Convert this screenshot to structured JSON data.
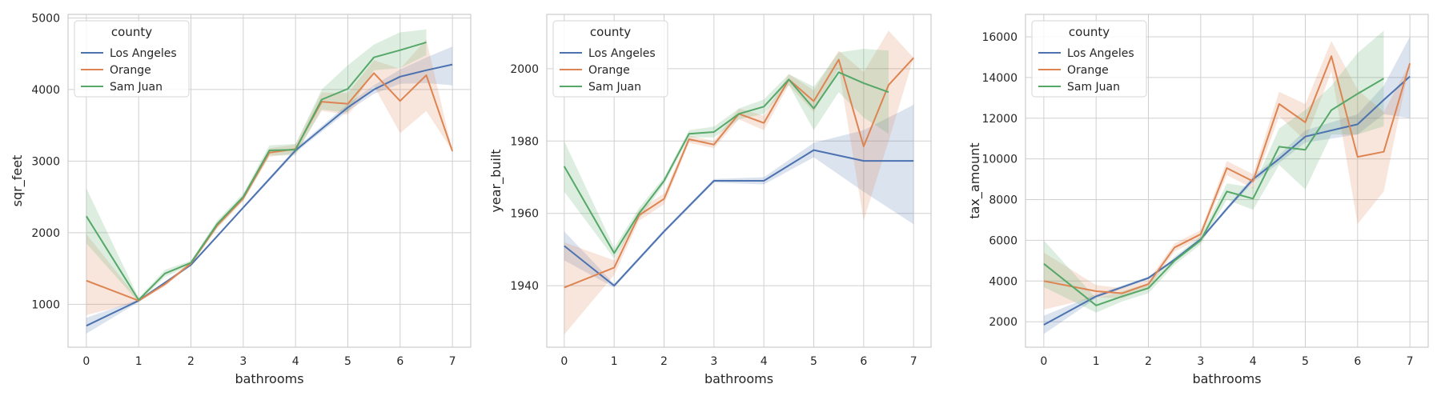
{
  "colors": {
    "los_angeles": "#4c72b0",
    "orange": "#dd8452",
    "sam_juan": "#55a868",
    "grid": "#d0d0d0",
    "frame": "#cccccc"
  },
  "chart_data": [
    {
      "type": "line",
      "xlabel": "bathrooms",
      "ylabel": "sqr_feet",
      "xlim": [
        -0.35,
        7.35
      ],
      "ylim": [
        400,
        5050
      ],
      "xticks": [
        0,
        1,
        2,
        3,
        4,
        5,
        6,
        7
      ],
      "yticks": [
        1000,
        2000,
        3000,
        4000,
        5000
      ],
      "grid": true,
      "legend": {
        "title": "county",
        "placement": "top-left",
        "entries": [
          "Los Angeles",
          "Orange",
          "Sam Juan"
        ]
      },
      "series": [
        {
          "name": "Los Angeles",
          "x": [
            0,
            1,
            1.5,
            2,
            2.5,
            3,
            3.5,
            4,
            4.5,
            5,
            5.5,
            6,
            6.5,
            7
          ],
          "y": [
            700,
            1050,
            1300,
            1550,
            1950,
            2350,
            2750,
            3150,
            3450,
            3750,
            4000,
            4180,
            4270,
            4350
          ],
          "lower": [
            590,
            1030,
            1285,
            1535,
            1935,
            2330,
            2725,
            3120,
            3410,
            3700,
            3940,
            4080,
            4090,
            4060
          ],
          "upper": [
            810,
            1070,
            1315,
            1565,
            1965,
            2370,
            2775,
            3180,
            3490,
            3800,
            4060,
            4280,
            4450,
            4600
          ]
        },
        {
          "name": "Orange",
          "x": [
            0,
            1,
            1.5,
            2,
            2.5,
            3,
            3.5,
            4,
            4.5,
            5,
            5.5,
            6,
            6.5,
            7
          ],
          "y": [
            1330,
            1050,
            1280,
            1570,
            2100,
            2480,
            3120,
            3170,
            3830,
            3800,
            4230,
            3840,
            4200,
            3140
          ],
          "lower": [
            850,
            1030,
            1250,
            1550,
            2060,
            2440,
            3060,
            3110,
            3700,
            3650,
            4050,
            3390,
            3700,
            3140
          ],
          "upper": [
            1980,
            1070,
            1310,
            1590,
            2140,
            2520,
            3180,
            3230,
            3960,
            3950,
            4410,
            4290,
            4700,
            3140
          ]
        },
        {
          "name": "Sam Juan",
          "x": [
            0,
            1,
            1.5,
            2,
            2.5,
            3,
            3.5,
            4,
            4.5,
            5,
            5.5,
            6,
            6.5
          ],
          "y": [
            2230,
            1060,
            1430,
            1580,
            2120,
            2500,
            3150,
            3160,
            3860,
            4010,
            4450,
            4550,
            4660
          ],
          "lower": [
            1850,
            1030,
            1380,
            1550,
            2070,
            2450,
            3080,
            3080,
            3720,
            3680,
            4270,
            4300,
            4480
          ],
          "upper": [
            2620,
            1090,
            1480,
            1610,
            2170,
            2550,
            3220,
            3240,
            4000,
            4340,
            4630,
            4800,
            4840
          ]
        }
      ]
    },
    {
      "type": "line",
      "xlabel": "bathrooms",
      "ylabel": "year_built",
      "xlim": [
        -0.35,
        7.35
      ],
      "ylim": [
        1923,
        2015
      ],
      "xticks": [
        0,
        1,
        2,
        3,
        4,
        5,
        6,
        7
      ],
      "yticks": [
        1940,
        1960,
        1980,
        2000
      ],
      "grid": true,
      "legend": {
        "title": "county",
        "placement": "top-left",
        "entries": [
          "Los Angeles",
          "Orange",
          "Sam Juan"
        ]
      },
      "series": [
        {
          "name": "Los Angeles",
          "x": [
            0,
            1,
            2,
            3,
            4,
            5,
            6,
            7
          ],
          "y": [
            1951,
            1940,
            1955,
            1969,
            1969,
            1977.5,
            1974.5,
            1974.5
          ],
          "lower": [
            1947,
            1939.5,
            1954.5,
            1968.5,
            1968,
            1975.5,
            1966,
            1957
          ],
          "upper": [
            1955,
            1940.5,
            1955.5,
            1969.5,
            1970,
            1979.5,
            1983,
            1990
          ]
        },
        {
          "name": "Orange",
          "x": [
            0,
            1,
            1.5,
            2,
            2.5,
            3,
            3.5,
            4,
            4.5,
            5,
            5.5,
            6,
            6.5,
            7
          ],
          "y": [
            1939.5,
            1945,
            1959.5,
            1964,
            1980.5,
            1979,
            1987.5,
            1985,
            1997,
            1991,
            2002.5,
            1978.5,
            1995.5,
            2003
          ],
          "lower": [
            1926.5,
            1943,
            1958,
            1962.5,
            1979.5,
            1978,
            1986,
            1983,
            1995.5,
            1988,
            2000,
            1958,
            1980,
            2003
          ],
          "upper": [
            1952,
            1947,
            1961,
            1965.5,
            1981.5,
            1980,
            1989,
            1987,
            1998.5,
            1994,
            2005,
            1999,
            2010.5,
            2003
          ]
        },
        {
          "name": "Sam Juan",
          "x": [
            0,
            1,
            1.5,
            2,
            2.5,
            3,
            3.5,
            4,
            4.5,
            5,
            5.5,
            6,
            6.5
          ],
          "y": [
            1973,
            1949,
            1960,
            1969,
            1982,
            1982.5,
            1987.5,
            1989.5,
            1997,
            1989,
            1999,
            1996,
            1993.5
          ],
          "lower": [
            1966,
            1947.5,
            1958.5,
            1968,
            1981,
            1981,
            1986,
            1987.5,
            1995.5,
            1983,
            1993.5,
            1986.5,
            1982
          ],
          "upper": [
            1980,
            1950.5,
            1961.5,
            1970,
            1983,
            1984,
            1989,
            1991.5,
            1998.5,
            1995,
            2004.5,
            2005.5,
            2005
          ]
        }
      ]
    },
    {
      "type": "line",
      "xlabel": "bathrooms",
      "ylabel": "tax_amount",
      "xlim": [
        -0.35,
        7.35
      ],
      "ylim": [
        750,
        17100
      ],
      "xticks": [
        0,
        1,
        2,
        3,
        4,
        5,
        6,
        7
      ],
      "yticks": [
        2000,
        4000,
        6000,
        8000,
        10000,
        12000,
        14000,
        16000
      ],
      "grid": true,
      "legend": {
        "title": "county",
        "placement": "top-left",
        "entries": [
          "Los Angeles",
          "Orange",
          "Sam Juan"
        ]
      },
      "series": [
        {
          "name": "Los Angeles",
          "x": [
            0,
            1,
            1.5,
            2,
            2.5,
            3,
            3.5,
            4,
            4.5,
            5,
            5.5,
            6,
            6.5,
            7
          ],
          "y": [
            1850,
            3250,
            3700,
            4150,
            5050,
            6050,
            7550,
            9000,
            10000,
            11100,
            11400,
            11700,
            12900,
            14050
          ],
          "lower": [
            1400,
            3150,
            3620,
            4080,
            4980,
            5970,
            7450,
            8850,
            9800,
            10800,
            11000,
            11200,
            12200,
            12000
          ],
          "upper": [
            2300,
            3350,
            3780,
            4220,
            5120,
            6130,
            7650,
            9150,
            10200,
            11400,
            11800,
            12200,
            13600,
            16000
          ]
        },
        {
          "name": "Orange",
          "x": [
            0,
            1,
            1.5,
            2,
            2.5,
            3,
            3.5,
            4,
            4.5,
            5,
            5.5,
            6,
            6.5,
            7
          ],
          "y": [
            4000,
            3500,
            3400,
            3850,
            5650,
            6300,
            9550,
            8900,
            12700,
            11800,
            15050,
            10100,
            10350,
            14700
          ],
          "lower": [
            2600,
            3200,
            3150,
            3650,
            5450,
            6100,
            9200,
            8550,
            12100,
            10900,
            14300,
            6800,
            8400,
            14700
          ],
          "upper": [
            5400,
            3800,
            3650,
            4050,
            5850,
            6500,
            9900,
            9250,
            13300,
            12700,
            15800,
            13400,
            12300,
            14700
          ]
        },
        {
          "name": "Sam Juan",
          "x": [
            0,
            1,
            1.5,
            2,
            2.5,
            3,
            3.5,
            4,
            4.5,
            5,
            5.5,
            6,
            6.5
          ],
          "y": [
            4850,
            2800,
            3250,
            3650,
            5000,
            6000,
            8400,
            8050,
            10600,
            10450,
            12400,
            13200,
            13950
          ],
          "lower": [
            3700,
            2450,
            3000,
            3400,
            4800,
            5800,
            8000,
            7500,
            9700,
            8500,
            11200,
            11200,
            11600
          ],
          "upper": [
            6000,
            3150,
            3500,
            3900,
            5200,
            6200,
            8800,
            8600,
            11500,
            12400,
            13600,
            15200,
            16300
          ]
        }
      ]
    }
  ]
}
